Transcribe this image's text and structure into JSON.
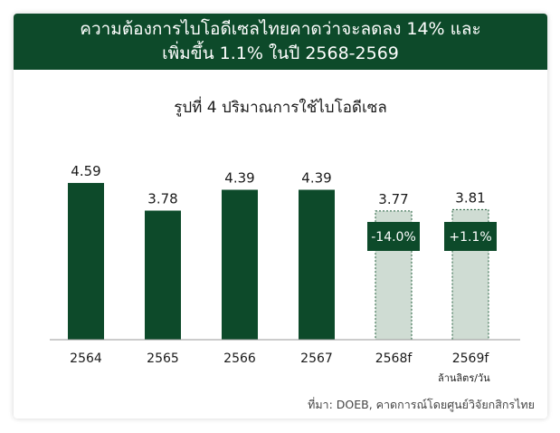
{
  "header": {
    "line1": "ความต้องการไบโอดีเซลไทยคาดว่าจะลดลง 14% และ",
    "line2": "เพิ่มขึ้น 1.1% ในปี 2568-2569"
  },
  "colors": {
    "header_bg": "#0d4a2a",
    "actual_bar": "#0d4a2a",
    "forecast_bar": "#cfdcd3",
    "forecast_border": "#1f5c3a",
    "badge_bg": "#0d4a2a",
    "badge_text": "#ffffff"
  },
  "chart_data": {
    "type": "bar",
    "title": "รูปที่ 4 ปริมาณการใช้ไบโอดีเซล",
    "categories": [
      "2564",
      "2565",
      "2566",
      "2567",
      "2568f",
      "2569f"
    ],
    "values": [
      4.59,
      3.78,
      4.39,
      4.39,
      3.77,
      3.81
    ],
    "value_labels": [
      "4.59",
      "3.78",
      "4.39",
      "4.39",
      "3.77",
      "3.81"
    ],
    "forecast": [
      false,
      false,
      false,
      false,
      true,
      true
    ],
    "annotations": [
      {
        "category": "2568f",
        "text": "-14.0%"
      },
      {
        "category": "2569f",
        "text": "+1.1%"
      }
    ],
    "unit_label": "ล้านลิตร/วัน",
    "grid": false,
    "legend": "none"
  },
  "source": "ที่มา: DOEB, คาดการณ์โดยศูนย์วิจัยกสิกรไทย"
}
